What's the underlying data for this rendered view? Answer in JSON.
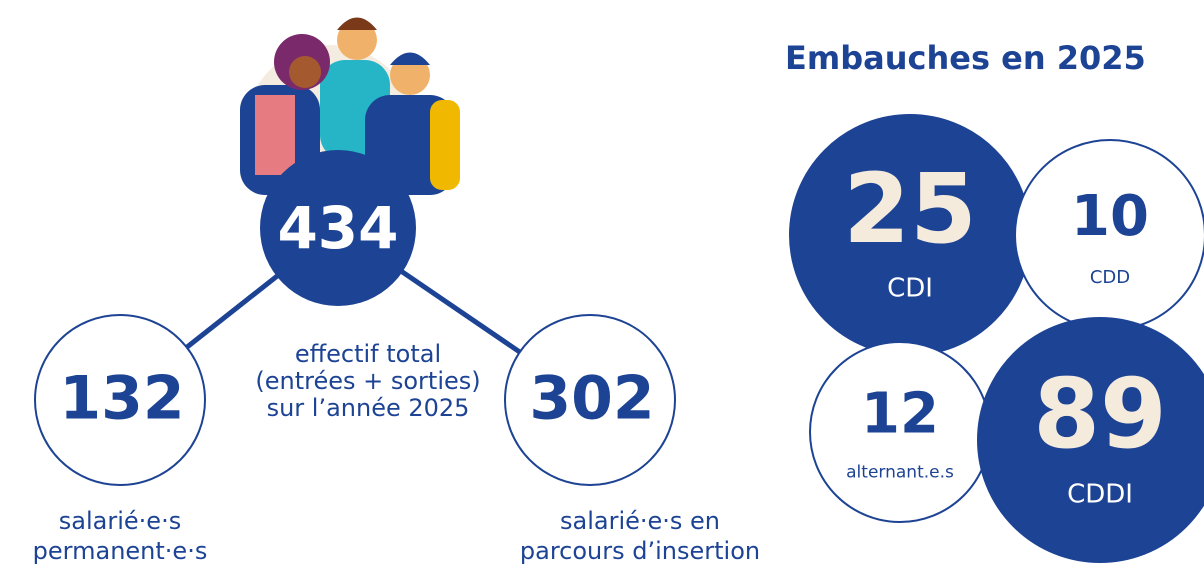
{
  "total": {
    "value": 434,
    "caption": [
      "effectif total",
      "(entrées + sorties)",
      "sur l’année 2025"
    ]
  },
  "permanent": {
    "value": 132,
    "label": [
      "salarié·e·s",
      "permanent·e·s"
    ]
  },
  "insertion": {
    "value": 302,
    "label": [
      "salarié·e·s en",
      "parcours d’insertion"
    ]
  },
  "hires": {
    "title": "Embauches en 2025",
    "items": [
      {
        "value": 25,
        "label": "CDI"
      },
      {
        "value": 10,
        "label": "CDD"
      },
      {
        "value": 12,
        "label": "alternant.e.s"
      },
      {
        "value": 89,
        "label": "CDDI"
      }
    ]
  }
}
